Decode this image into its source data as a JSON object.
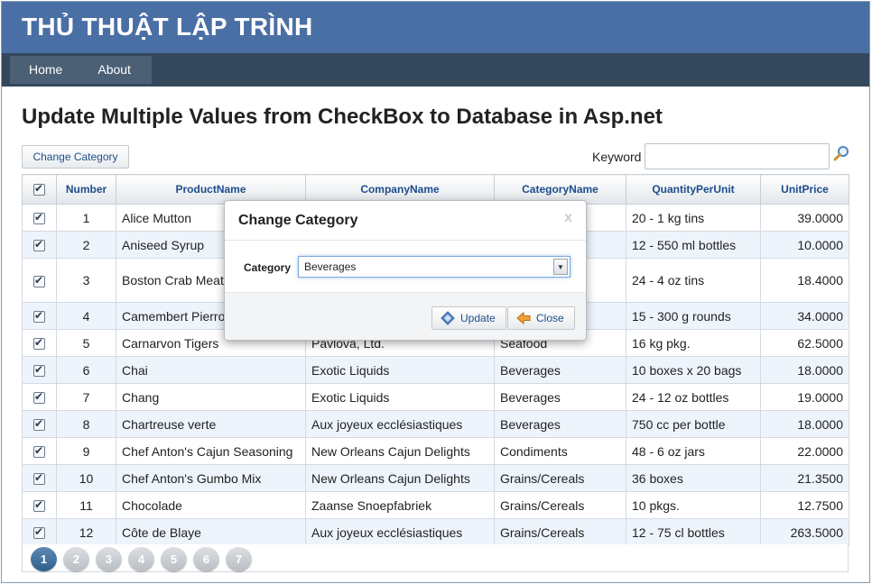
{
  "banner": {
    "title": "THỦ THUẬT LẬP TRÌNH"
  },
  "nav": {
    "items": [
      {
        "label": "Home"
      },
      {
        "label": "About"
      }
    ]
  },
  "page_title": "Update Multiple Values from CheckBox to Database in Asp.net",
  "toolbar": {
    "change_category_label": "Change Category"
  },
  "search": {
    "label": "Keyword",
    "value": "",
    "placeholder": "",
    "icon": "search-magnifier-icon"
  },
  "grid": {
    "columns": [
      "Number",
      "ProductName",
      "CompanyName",
      "CategoryName",
      "QuantityPerUnit",
      "UnitPrice"
    ],
    "rows": [
      {
        "number": "1",
        "product": "Alice Mutton",
        "company": "",
        "category": "",
        "quantity": "20 - 1 kg tins",
        "price": "39.0000",
        "checked": true
      },
      {
        "number": "2",
        "product": "Aniseed Syrup",
        "company": "",
        "category": "",
        "quantity": "12 - 550 ml bottles",
        "price": "10.0000",
        "checked": true
      },
      {
        "number": "3",
        "product": "Boston Crab Meat",
        "company": "",
        "category": "",
        "quantity": "24 - 4 oz tins",
        "price": "18.4000",
        "checked": true
      },
      {
        "number": "4",
        "product": "Camembert Pierrot",
        "company": "",
        "category": "",
        "quantity": "15 - 300 g rounds",
        "price": "34.0000",
        "checked": true
      },
      {
        "number": "5",
        "product": "Carnarvon Tigers",
        "company": "Pavlova, Ltd.",
        "category": "Seafood",
        "quantity": "16 kg pkg.",
        "price": "62.5000",
        "checked": true
      },
      {
        "number": "6",
        "product": "Chai",
        "company": "Exotic Liquids",
        "category": "Beverages",
        "quantity": "10 boxes x 20 bags",
        "price": "18.0000",
        "checked": true
      },
      {
        "number": "7",
        "product": "Chang",
        "company": "Exotic Liquids",
        "category": "Beverages",
        "quantity": "24 - 12 oz bottles",
        "price": "19.0000",
        "checked": true
      },
      {
        "number": "8",
        "product": "Chartreuse verte",
        "company": "Aux joyeux ecclésiastiques",
        "category": "Beverages",
        "quantity": "750 cc per bottle",
        "price": "18.0000",
        "checked": true
      },
      {
        "number": "9",
        "product": "Chef Anton's Cajun Seasoning",
        "company": "New Orleans Cajun Delights",
        "category": "Condiments",
        "quantity": "48 - 6 oz jars",
        "price": "22.0000",
        "checked": true
      },
      {
        "number": "10",
        "product": "Chef Anton's Gumbo Mix",
        "company": "New Orleans Cajun Delights",
        "category": "Grains/Cereals",
        "quantity": "36 boxes",
        "price": "21.3500",
        "checked": true
      },
      {
        "number": "11",
        "product": "Chocolade",
        "company": "Zaanse Snoepfabriek",
        "category": "Grains/Cereals",
        "quantity": "10 pkgs.",
        "price": "12.7500",
        "checked": true
      },
      {
        "number": "12",
        "product": "Côte de Blaye",
        "company": "Aux joyeux ecclésiastiques",
        "category": "Grains/Cereals",
        "quantity": "12 - 75 cl bottles",
        "price": "263.5000",
        "checked": true
      }
    ]
  },
  "pager": {
    "pages": [
      "1",
      "2",
      "3",
      "4",
      "5",
      "6",
      "7"
    ],
    "active": "1"
  },
  "modal": {
    "title": "Change Category",
    "close_label": "x",
    "category_label": "Category",
    "selected_category": "Beverages",
    "update_label": "Update",
    "close_button_label": "Close"
  },
  "colors": {
    "banner": "#4a6fa5",
    "navbar": "#34485c",
    "header_text": "#1d4d8c",
    "alt_row": "#eef4fc"
  }
}
